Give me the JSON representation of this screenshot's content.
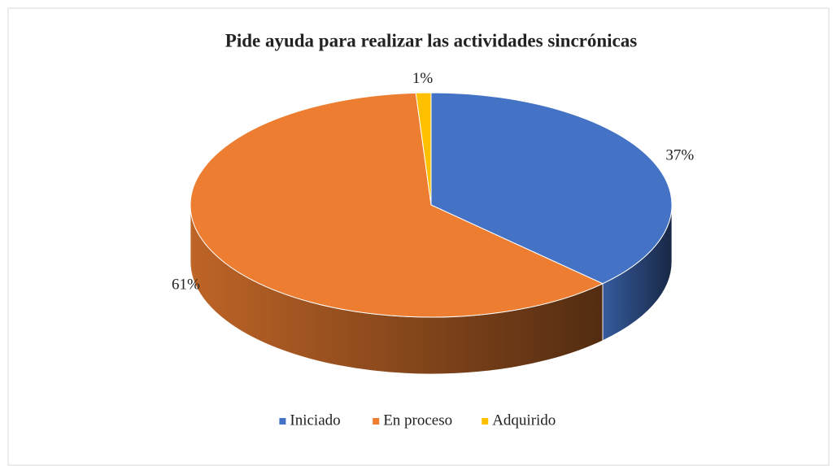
{
  "chart_data": {
    "type": "pie",
    "title": "Pide ayuda para realizar las actividades sincrónicas",
    "categories": [
      "Iniciado",
      "En proceso",
      "Adquirido"
    ],
    "values": [
      37,
      61,
      1
    ],
    "value_labels": [
      "37%",
      "61%",
      "1%"
    ],
    "colors": [
      "#4472c4",
      "#ed7d31",
      "#ffc000"
    ],
    "legend": "bottom"
  }
}
